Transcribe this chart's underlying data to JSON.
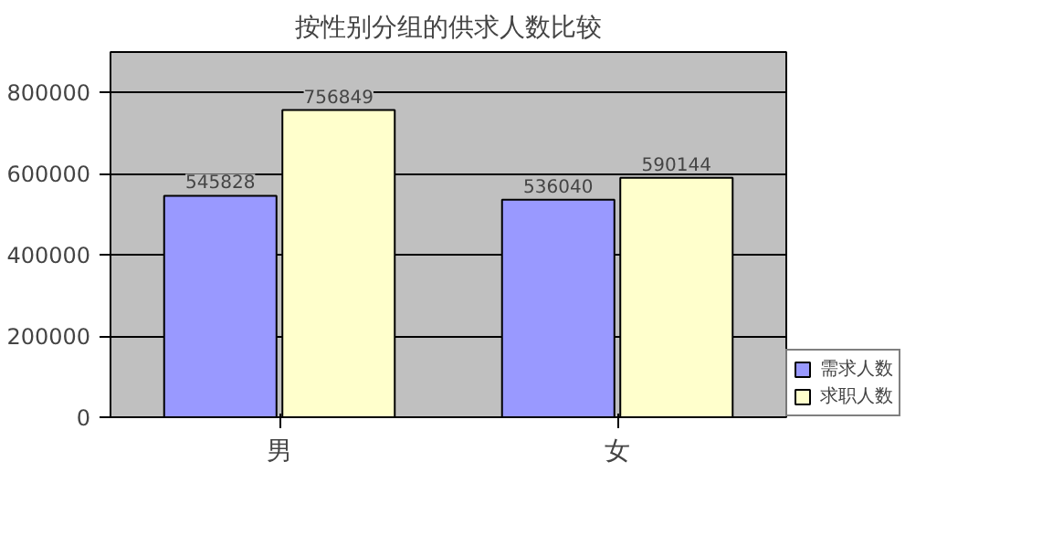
{
  "chart_data": {
    "type": "bar",
    "title": "按性别分组的供求人数比较",
    "categories": [
      "男",
      "女"
    ],
    "series": [
      {
        "name": "需求人数",
        "color": "#9999ff",
        "values": [
          545828,
          536040
        ]
      },
      {
        "name": "求职人数",
        "color": "#ffffcc",
        "values": [
          756849,
          590144
        ]
      }
    ],
    "ylim": [
      0,
      900000
    ],
    "yticks": [
      0,
      200000,
      400000,
      600000,
      800000
    ],
    "grid": "y",
    "legend": "bottom right",
    "data_labels": true
  }
}
